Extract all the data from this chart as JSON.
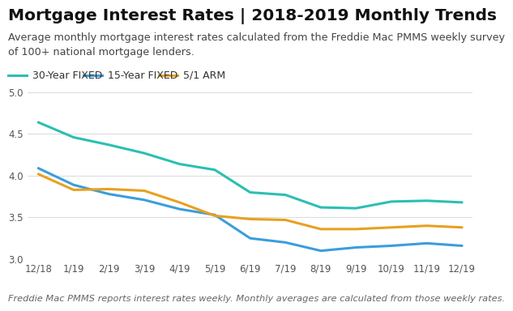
{
  "title": "Mortgage Interest Rates | 2018-2019 Monthly Trends",
  "subtitle": "Average monthly mortgage interest rates calculated from the Freddie Mac PMMS weekly survey\nof 100+ national mortgage lenders.",
  "footnote": "Freddie Mac PMMS reports interest rates weekly. Monthly averages are calculated from those weekly rates.",
  "x_labels": [
    "12/18",
    "1/19",
    "2/19",
    "3/19",
    "4/19",
    "5/19",
    "6/19",
    "7/19",
    "8/19",
    "9/19",
    "10/19",
    "11/19",
    "12/19"
  ],
  "series_30yr": [
    4.64,
    4.46,
    4.37,
    4.27,
    4.14,
    4.07,
    3.8,
    3.77,
    3.62,
    3.61,
    3.69,
    3.7,
    3.68
  ],
  "series_15yr": [
    4.09,
    3.89,
    3.78,
    3.71,
    3.6,
    3.53,
    3.25,
    3.2,
    3.1,
    3.14,
    3.16,
    3.19,
    3.16
  ],
  "series_arm": [
    4.02,
    3.83,
    3.84,
    3.82,
    3.68,
    3.52,
    3.48,
    3.47,
    3.36,
    3.36,
    3.38,
    3.4,
    3.38
  ],
  "color_30yr": "#2bbfb3",
  "color_15yr": "#3b9ddd",
  "color_arm": "#e8a020",
  "ylim": [
    3.0,
    5.0
  ],
  "yticks": [
    3.0,
    3.5,
    4.0,
    4.5,
    5.0
  ],
  "legend_labels": [
    "30-Year FIXED",
    "15-Year FIXED",
    "5/1 ARM"
  ],
  "background_color": "#ffffff",
  "grid_color": "#dddddd",
  "title_fontsize": 14.5,
  "subtitle_fontsize": 9.2,
  "footnote_fontsize": 8.2,
  "axis_fontsize": 8.5,
  "legend_fontsize": 9.0,
  "line_width": 2.2
}
